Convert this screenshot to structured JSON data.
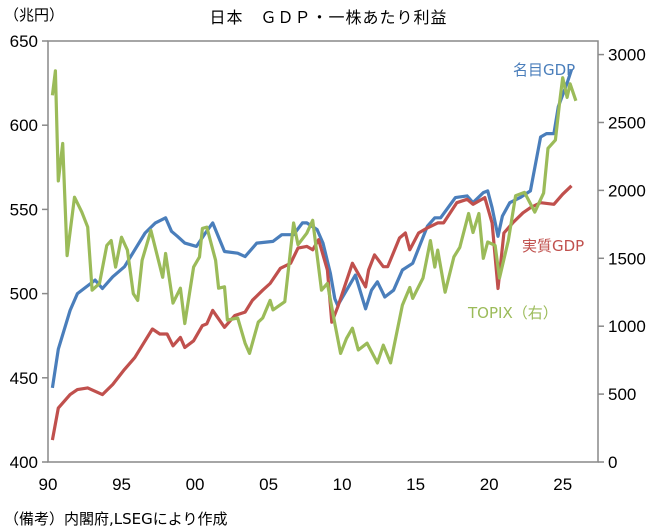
{
  "chart_data": {
    "type": "line",
    "title": "日本　ＧＤＰ・一株あたり利益",
    "ylabel": "（兆円）",
    "note": "（備考）内閣府,LSEGにより作成",
    "xlim": [
      1990,
      2027.4
    ],
    "ylim": [
      400,
      650
    ],
    "y2lim": [
      0,
      3100
    ],
    "grid": false,
    "x_ticks": [
      1990,
      1995,
      2000,
      2005,
      2010,
      2015,
      2020,
      2025
    ],
    "x_tick_labels": [
      "90",
      "95",
      "00",
      "05",
      "10",
      "15",
      "20",
      "25"
    ],
    "y_ticks": [
      400,
      450,
      500,
      550,
      600,
      650
    ],
    "y_tick_labels": [
      "400",
      "450",
      "500",
      "550",
      "600",
      "650"
    ],
    "y2_ticks": [
      0,
      500,
      1000,
      1500,
      2000,
      2500,
      3000
    ],
    "y2_tick_labels": [
      "0",
      "500",
      "1000",
      "1500",
      "2000",
      "2500",
      "3000"
    ],
    "axis_color": "#898989",
    "series": [
      {
        "name": "名目GDP",
        "axis": "left",
        "color": "#4a7ebb",
        "x": [
          1990.3,
          1990.7,
          1991.5,
          1992.0,
          1993.2,
          1993.7,
          1994.4,
          1995.2,
          1995.9,
          1996.6,
          1997.3,
          1998.0,
          1998.4,
          1998.8,
          1999.3,
          2000.1,
          2000.7,
          2001.2,
          2002.0,
          2002.9,
          2003.4,
          2004.2,
          2005.3,
          2005.9,
          2006.7,
          2007.3,
          2007.6,
          2008.3,
          2008.7,
          2009.2,
          2009.5,
          2009.7,
          2010.9,
          2011.6,
          2012.0,
          2012.4,
          2012.9,
          2013.5,
          2014.1,
          2014.8,
          2015.8,
          2016.3,
          2016.7,
          2017.7,
          2018.5,
          2018.9,
          2019.6,
          2019.9,
          2020.2,
          2020.6,
          2020.9,
          2021.4,
          2022.1,
          2022.8,
          2023.5,
          2023.9,
          2024.4,
          2024.7,
          2025.3,
          2025.6
        ],
        "values": [
          444,
          467,
          490,
          500,
          508,
          503,
          510,
          516,
          526,
          536,
          542,
          545,
          537,
          534,
          530,
          528,
          536,
          542,
          525,
          524,
          522,
          530,
          531,
          535,
          535,
          542,
          542,
          538,
          530,
          512,
          497,
          493,
          511,
          491,
          502,
          507,
          498,
          502,
          514,
          518,
          540,
          545,
          545,
          557,
          558,
          554,
          560,
          561,
          551,
          534,
          546,
          554,
          557,
          561,
          593,
          595,
          595,
          611,
          625,
          633
        ]
      },
      {
        "name": "実質GDP",
        "axis": "left",
        "color": "#c0504d",
        "x": [
          1990.3,
          1990.7,
          1991.5,
          1992.0,
          1992.7,
          1993.7,
          1994.4,
          1995.2,
          1995.9,
          1996.6,
          1997.1,
          1997.6,
          1998.1,
          1998.5,
          1999.0,
          1999.3,
          1999.9,
          2000.5,
          2000.8,
          2001.2,
          2002.0,
          2002.7,
          2003.4,
          2003.9,
          2004.6,
          2005.1,
          2005.8,
          2006.5,
          2007.0,
          2007.6,
          2008.0,
          2008.4,
          2009.0,
          2009.3,
          2009.7,
          2010.7,
          2011.6,
          2011.8,
          2012.2,
          2012.8,
          2013.1,
          2013.9,
          2014.3,
          2014.6,
          2015.2,
          2015.8,
          2016.5,
          2016.9,
          2017.8,
          2018.5,
          2018.9,
          2019.7,
          2020.2,
          2020.6,
          2021.0,
          2021.6,
          2022.3,
          2022.8,
          2023.5,
          2024.4,
          2025.0,
          2025.6
        ],
        "values": [
          413,
          432,
          440,
          443,
          444,
          440,
          446,
          455,
          462,
          472,
          479,
          476,
          476,
          469,
          474,
          468,
          472,
          481,
          482,
          490,
          480,
          487,
          489,
          496,
          502,
          506,
          515,
          518,
          527,
          528,
          526,
          532,
          514,
          483,
          492,
          518,
          504,
          514,
          523,
          516,
          516,
          533,
          536,
          526,
          536,
          539,
          542,
          542,
          554,
          556,
          553,
          557,
          542,
          503,
          536,
          542,
          548,
          551,
          554,
          553,
          559,
          564
        ]
      },
      {
        "name": "TOPIX（右）",
        "axis": "right",
        "color": "#9bbb59",
        "x": [
          1990.3,
          1990.5,
          1990.7,
          1991.0,
          1991.3,
          1991.8,
          1992.3,
          1992.7,
          1993.0,
          1993.5,
          1994.0,
          1994.3,
          1994.6,
          1995.0,
          1995.4,
          1995.8,
          1996.1,
          1996.4,
          1997.0,
          1997.8,
          1998.0,
          1998.5,
          1999.0,
          1999.3,
          1999.9,
          2000.3,
          2000.5,
          2000.8,
          2001.4,
          2001.6,
          2002.0,
          2002.2,
          2002.9,
          2003.4,
          2003.7,
          2004.3,
          2004.6,
          2005.1,
          2005.3,
          2006.1,
          2006.7,
          2007.0,
          2007.6,
          2008.0,
          2008.6,
          2009.0,
          2009.5,
          2009.9,
          2010.3,
          2010.7,
          2011.1,
          2011.7,
          2012.4,
          2012.8,
          2013.3,
          2014.1,
          2014.6,
          2014.8,
          2015.5,
          2016.0,
          2016.3,
          2016.5,
          2017.0,
          2017.6,
          2018.0,
          2018.6,
          2018.9,
          2019.3,
          2019.6,
          2019.9,
          2020.4,
          2020.7,
          2021.3,
          2021.8,
          2022.4,
          2023.1,
          2023.7,
          2024.0,
          2024.5,
          2024.8,
          2025.0,
          2025.3,
          2025.5,
          2025.9
        ],
        "values": [
          2700,
          2880,
          2070,
          2345,
          1520,
          1950,
          1840,
          1730,
          1265,
          1315,
          1595,
          1630,
          1435,
          1655,
          1560,
          1240,
          1190,
          1485,
          1705,
          1360,
          1535,
          1170,
          1280,
          1020,
          1435,
          1510,
          1720,
          1730,
          1485,
          1280,
          1290,
          1045,
          1060,
          875,
          800,
          1030,
          1060,
          1190,
          1120,
          1180,
          1760,
          1600,
          1685,
          1780,
          1265,
          1315,
          1020,
          800,
          910,
          985,
          825,
          875,
          730,
          860,
          730,
          1155,
          1285,
          1205,
          1355,
          1630,
          1435,
          1560,
          1250,
          1510,
          1580,
          1830,
          1690,
          1830,
          1500,
          1620,
          1595,
          1355,
          1630,
          1960,
          1985,
          1840,
          1980,
          2310,
          2370,
          2660,
          2830,
          2685,
          2785,
          2660
        ]
      }
    ]
  }
}
